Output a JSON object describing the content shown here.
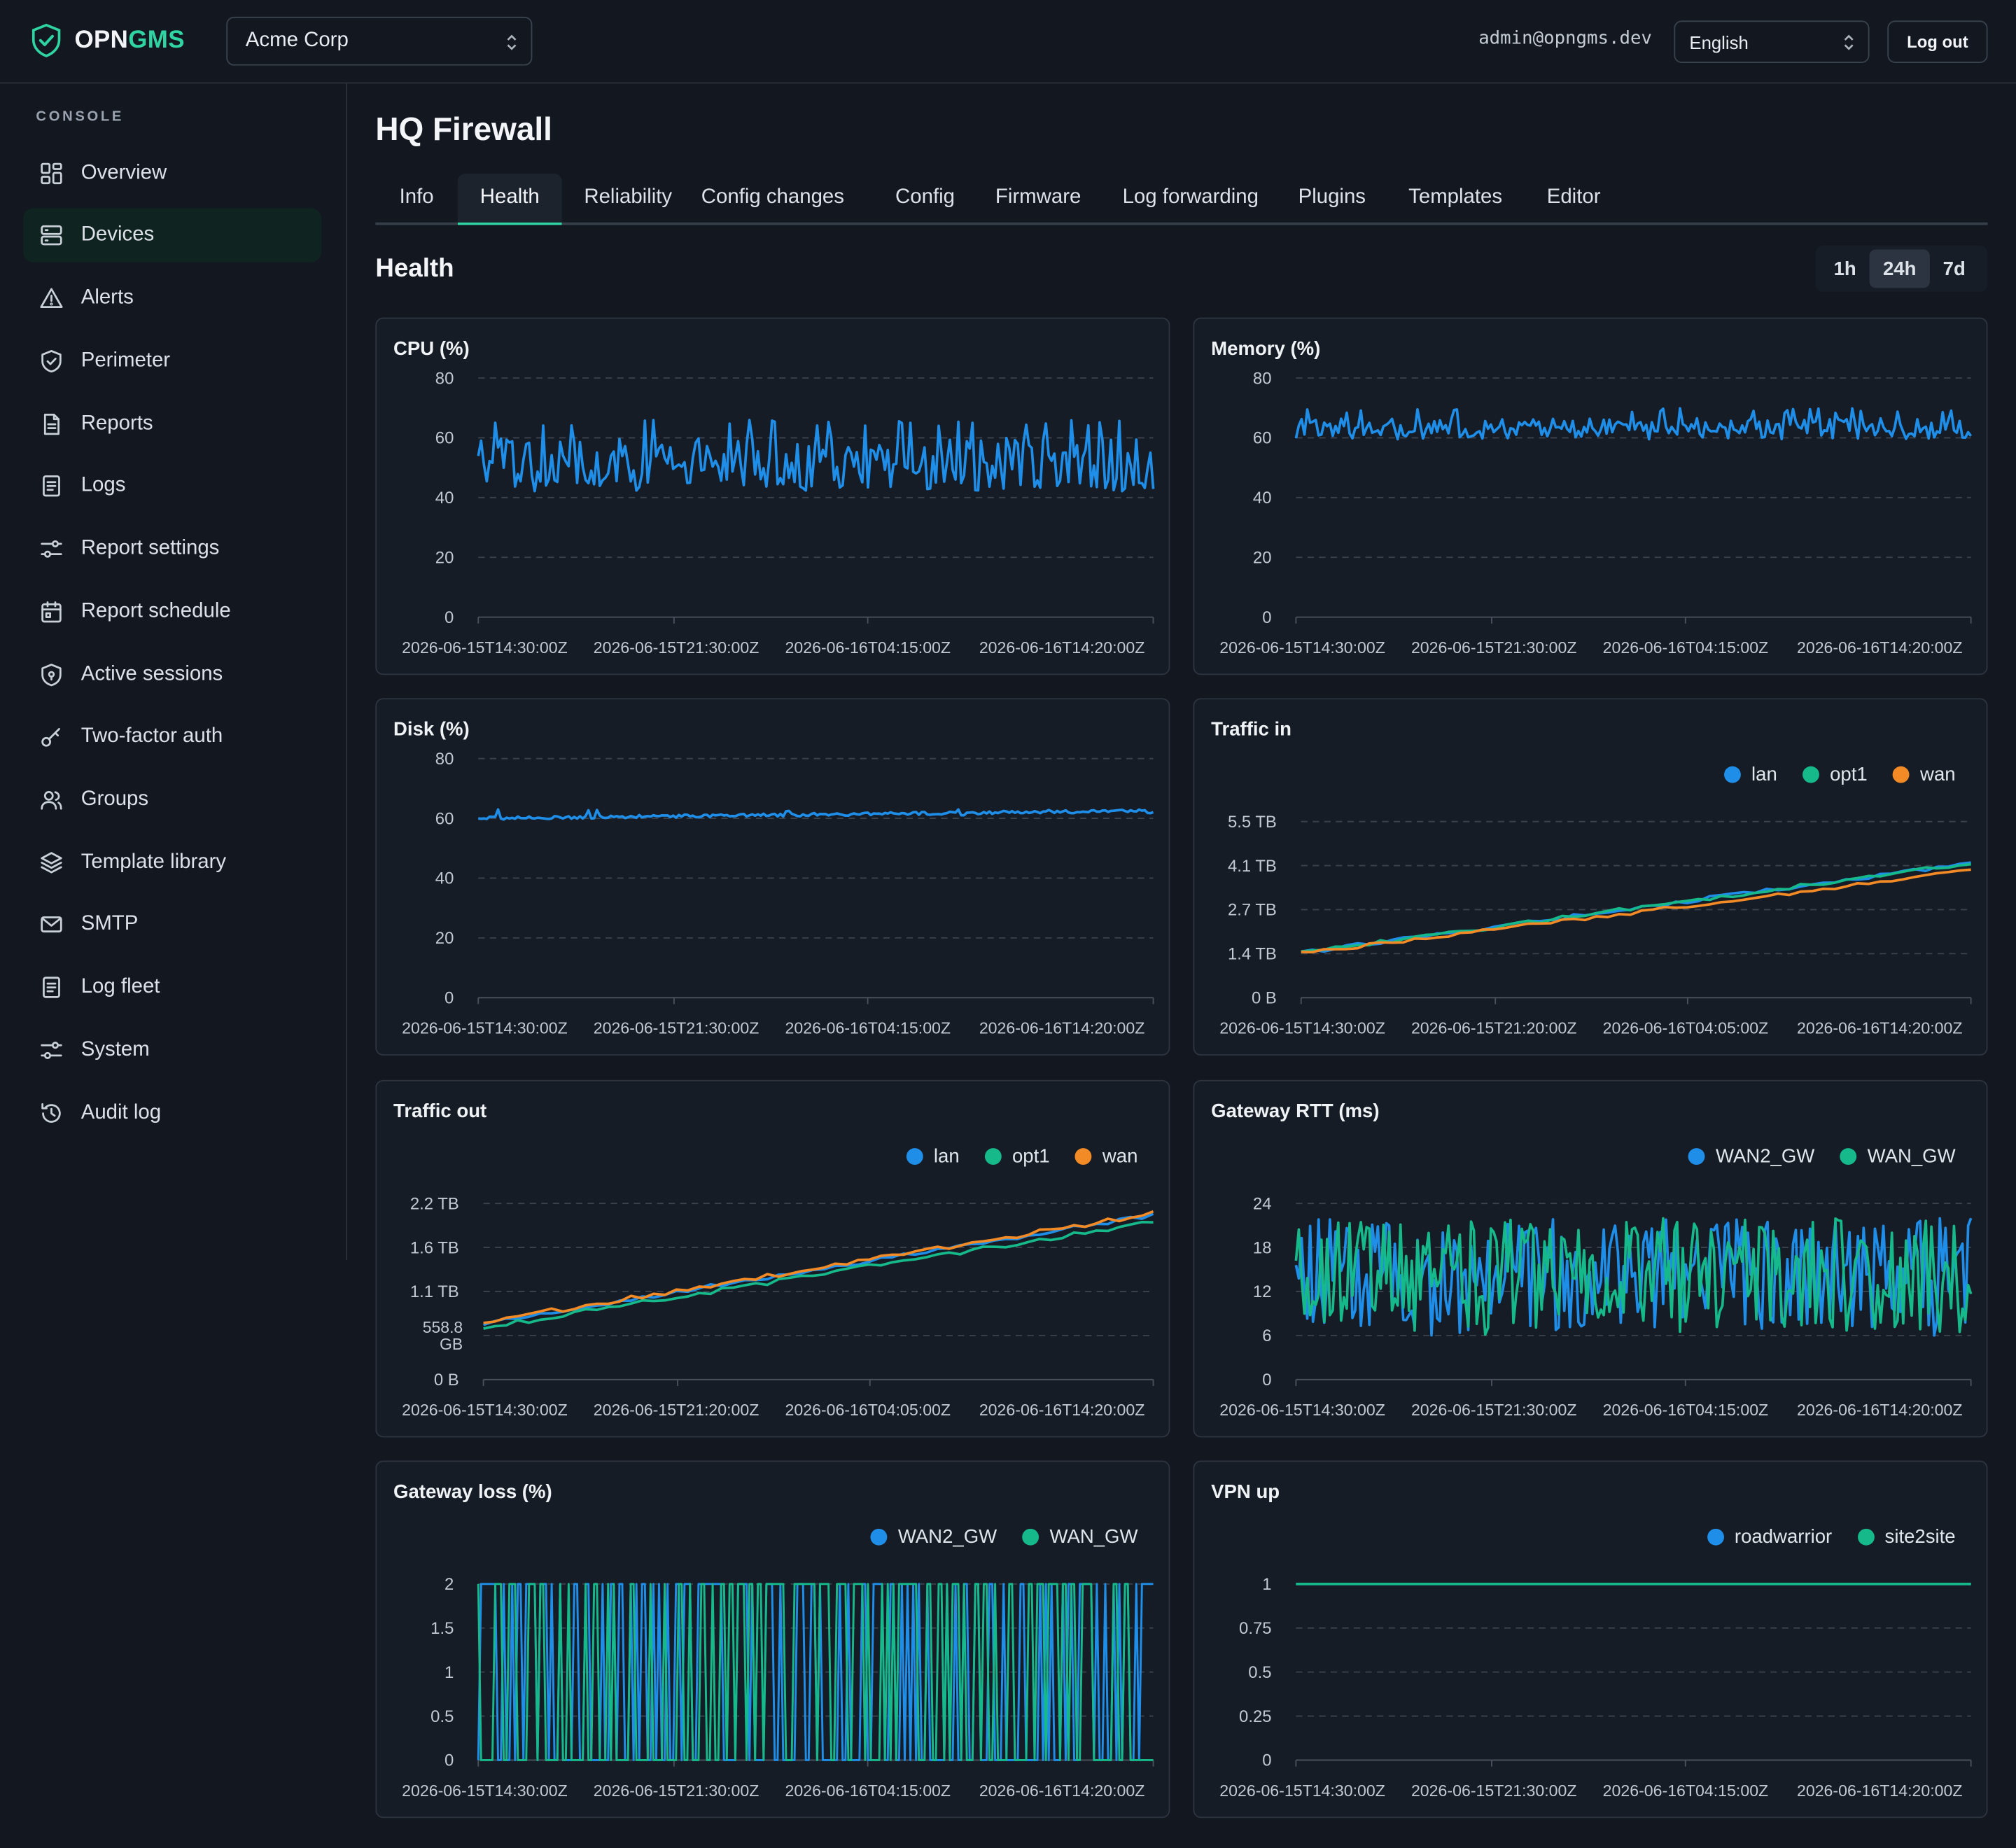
{
  "app": {
    "brand_a": "OPN",
    "brand_b": "GMS"
  },
  "header": {
    "org": "Acme Corp",
    "user_email": "admin@opngms.dev",
    "language": "English",
    "logout_label": "Log out"
  },
  "sidebar": {
    "section_title": "CONSOLE",
    "items": [
      {
        "label": "Overview",
        "icon": "grid-icon"
      },
      {
        "label": "Devices",
        "icon": "server-icon",
        "active": true
      },
      {
        "label": "Alerts",
        "icon": "warning-icon"
      },
      {
        "label": "Perimeter",
        "icon": "shield-icon"
      },
      {
        "label": "Reports",
        "icon": "document-icon"
      },
      {
        "label": "Logs",
        "icon": "list-doc-icon"
      },
      {
        "label": "Report settings",
        "icon": "sliders-icon"
      },
      {
        "label": "Report schedule",
        "icon": "calendar-icon"
      },
      {
        "label": "Active sessions",
        "icon": "shield-lock-icon"
      },
      {
        "label": "Two-factor auth",
        "icon": "key-icon"
      },
      {
        "label": "Groups",
        "icon": "users-icon"
      },
      {
        "label": "Template library",
        "icon": "layers-icon"
      },
      {
        "label": "SMTP",
        "icon": "mail-icon"
      },
      {
        "label": "Log fleet",
        "icon": "list-doc-icon"
      },
      {
        "label": "System",
        "icon": "sliders-icon"
      },
      {
        "label": "Audit log",
        "icon": "history-icon"
      }
    ]
  },
  "device": {
    "title": "HQ Firewall"
  },
  "tabs": [
    "Info",
    "Health",
    "Reliability",
    "Config changes",
    "Config",
    "Firmware",
    "Log forwarding",
    "Plugins",
    "Templates",
    "Editor"
  ],
  "active_tab": "Health",
  "health": {
    "title": "Health",
    "ranges": [
      "1h",
      "24h",
      "7d"
    ],
    "active_range": "24h"
  },
  "colors": {
    "blue": "#1f8ee8",
    "green": "#16b98a",
    "orange": "#f28a26",
    "accent": "#2fd4a2"
  },
  "chart_data": [
    {
      "title": "CPU (%)",
      "type": "line",
      "yticks": [
        "80",
        "60",
        "40",
        "20",
        "0"
      ],
      "ylim": [
        0,
        80
      ],
      "xticks": [
        "2026-06-15T14:30:00Z",
        "2026-06-15T21:30:00Z",
        "2026-06-16T04:15:00Z",
        "2026-06-16T14:20:00Z"
      ],
      "series": [
        {
          "color": "#1f8ee8",
          "min": 39,
          "max": 66,
          "base": 51,
          "jitter": 9,
          "points": 240
        }
      ]
    },
    {
      "title": "Memory (%)",
      "type": "line",
      "yticks": [
        "80",
        "60",
        "40",
        "20",
        "0"
      ],
      "ylim": [
        0,
        80
      ],
      "xticks": [
        "2026-06-15T14:30:00Z",
        "2026-06-15T21:30:00Z",
        "2026-06-16T04:15:00Z",
        "2026-06-16T14:20:00Z"
      ],
      "series": [
        {
          "color": "#1f8ee8",
          "min": 57,
          "max": 70,
          "base": 63,
          "jitter": 3.5,
          "points": 240
        }
      ]
    },
    {
      "title": "Disk (%)",
      "type": "line",
      "yticks": [
        "80",
        "60",
        "40",
        "20",
        "0"
      ],
      "ylim": [
        0,
        80
      ],
      "xticks": [
        "2026-06-15T14:30:00Z",
        "2026-06-15T21:30:00Z",
        "2026-06-16T04:15:00Z",
        "2026-06-16T14:20:00Z"
      ],
      "series": [
        {
          "color": "#1f8ee8",
          "min": 59,
          "max": 63,
          "base": 60,
          "trend": 2.5,
          "jitter": 0.5,
          "points": 240
        }
      ]
    },
    {
      "title": "Traffic in",
      "type": "line",
      "yticks": [
        "5.5 TB",
        "4.1 TB",
        "2.7 TB",
        "1.4 TB",
        "0 B"
      ],
      "ylim": [
        0,
        5.5
      ],
      "xticks": [
        "2026-06-15T14:30:00Z",
        "2026-06-15T21:20:00Z",
        "2026-06-16T04:05:00Z",
        "2026-06-16T14:20:00Z"
      ],
      "legend": [
        "lan",
        "opt1",
        "wan"
      ],
      "series": [
        {
          "name": "lan",
          "color": "#1f8ee8",
          "start": 1.4,
          "end": 4.2,
          "points": 60
        },
        {
          "name": "opt1",
          "color": "#16b98a",
          "start": 1.4,
          "end": 4.2,
          "points": 60
        },
        {
          "name": "wan",
          "color": "#f28a26",
          "start": 1.38,
          "end": 3.96,
          "points": 60
        }
      ]
    },
    {
      "title": "Traffic out",
      "type": "line",
      "yticks": [
        "2.2 TB",
        "1.6 TB",
        "1.1 TB",
        "558.8 GB",
        "0 B"
      ],
      "ylim": [
        0,
        2.2
      ],
      "xticks": [
        "2026-06-15T14:30:00Z",
        "2026-06-15T21:20:00Z",
        "2026-06-16T04:05:00Z",
        "2026-06-16T14:20:00Z"
      ],
      "legend": [
        "lan",
        "opt1",
        "wan"
      ],
      "series": [
        {
          "name": "lan",
          "color": "#1f8ee8",
          "start": 0.7,
          "end": 2.05,
          "points": 60
        },
        {
          "name": "opt1",
          "color": "#16b98a",
          "start": 0.65,
          "end": 1.97,
          "points": 60
        },
        {
          "name": "wan",
          "color": "#f28a26",
          "start": 0.72,
          "end": 2.07,
          "points": 60
        }
      ]
    },
    {
      "title": "Gateway RTT (ms)",
      "type": "line",
      "yticks": [
        "24",
        "18",
        "12",
        "6",
        "0"
      ],
      "ylim": [
        0,
        24
      ],
      "xticks": [
        "2026-06-15T14:30:00Z",
        "2026-06-15T21:30:00Z",
        "2026-06-16T04:15:00Z",
        "2026-06-16T14:20:00Z"
      ],
      "legend": [
        "WAN2_GW",
        "WAN_GW"
      ],
      "series": [
        {
          "name": "WAN2_GW",
          "color": "#1f8ee8",
          "min": 6,
          "max": 22,
          "base": 14,
          "jitter": 8,
          "points": 240
        },
        {
          "name": "WAN_GW",
          "color": "#16b98a",
          "min": 6,
          "max": 22,
          "base": 14,
          "jitter": 8,
          "points": 240
        }
      ]
    },
    {
      "title": "Gateway loss (%)",
      "type": "line",
      "yticks": [
        "2",
        "1.5",
        "1",
        "0.5",
        "0"
      ],
      "ylim": [
        0,
        2
      ],
      "xticks": [
        "2026-06-15T14:30:00Z",
        "2026-06-15T21:30:00Z",
        "2026-06-16T04:15:00Z",
        "2026-06-16T14:20:00Z"
      ],
      "legend": [
        "WAN2_GW",
        "WAN_GW"
      ],
      "series": [
        {
          "name": "WAN2_GW",
          "color": "#1f8ee8",
          "binary": true,
          "low": 0,
          "high": 2,
          "points": 240
        },
        {
          "name": "WAN_GW",
          "color": "#16b98a",
          "binary": true,
          "low": 0,
          "high": 2,
          "points": 240
        }
      ]
    },
    {
      "title": "VPN up",
      "type": "line",
      "yticks": [
        "1",
        "0.75",
        "0.5",
        "0.25",
        "0"
      ],
      "ylim": [
        0,
        1
      ],
      "xticks": [
        "2026-06-15T14:30:00Z",
        "2026-06-15T21:30:00Z",
        "2026-06-16T04:15:00Z",
        "2026-06-16T14:20:00Z"
      ],
      "legend": [
        "roadwarrior",
        "site2site"
      ],
      "series": [
        {
          "name": "roadwarrior",
          "color": "#1f8ee8",
          "constant": 1,
          "points": 2
        },
        {
          "name": "site2site",
          "color": "#16b98a",
          "constant": 1,
          "points": 2
        }
      ]
    }
  ]
}
